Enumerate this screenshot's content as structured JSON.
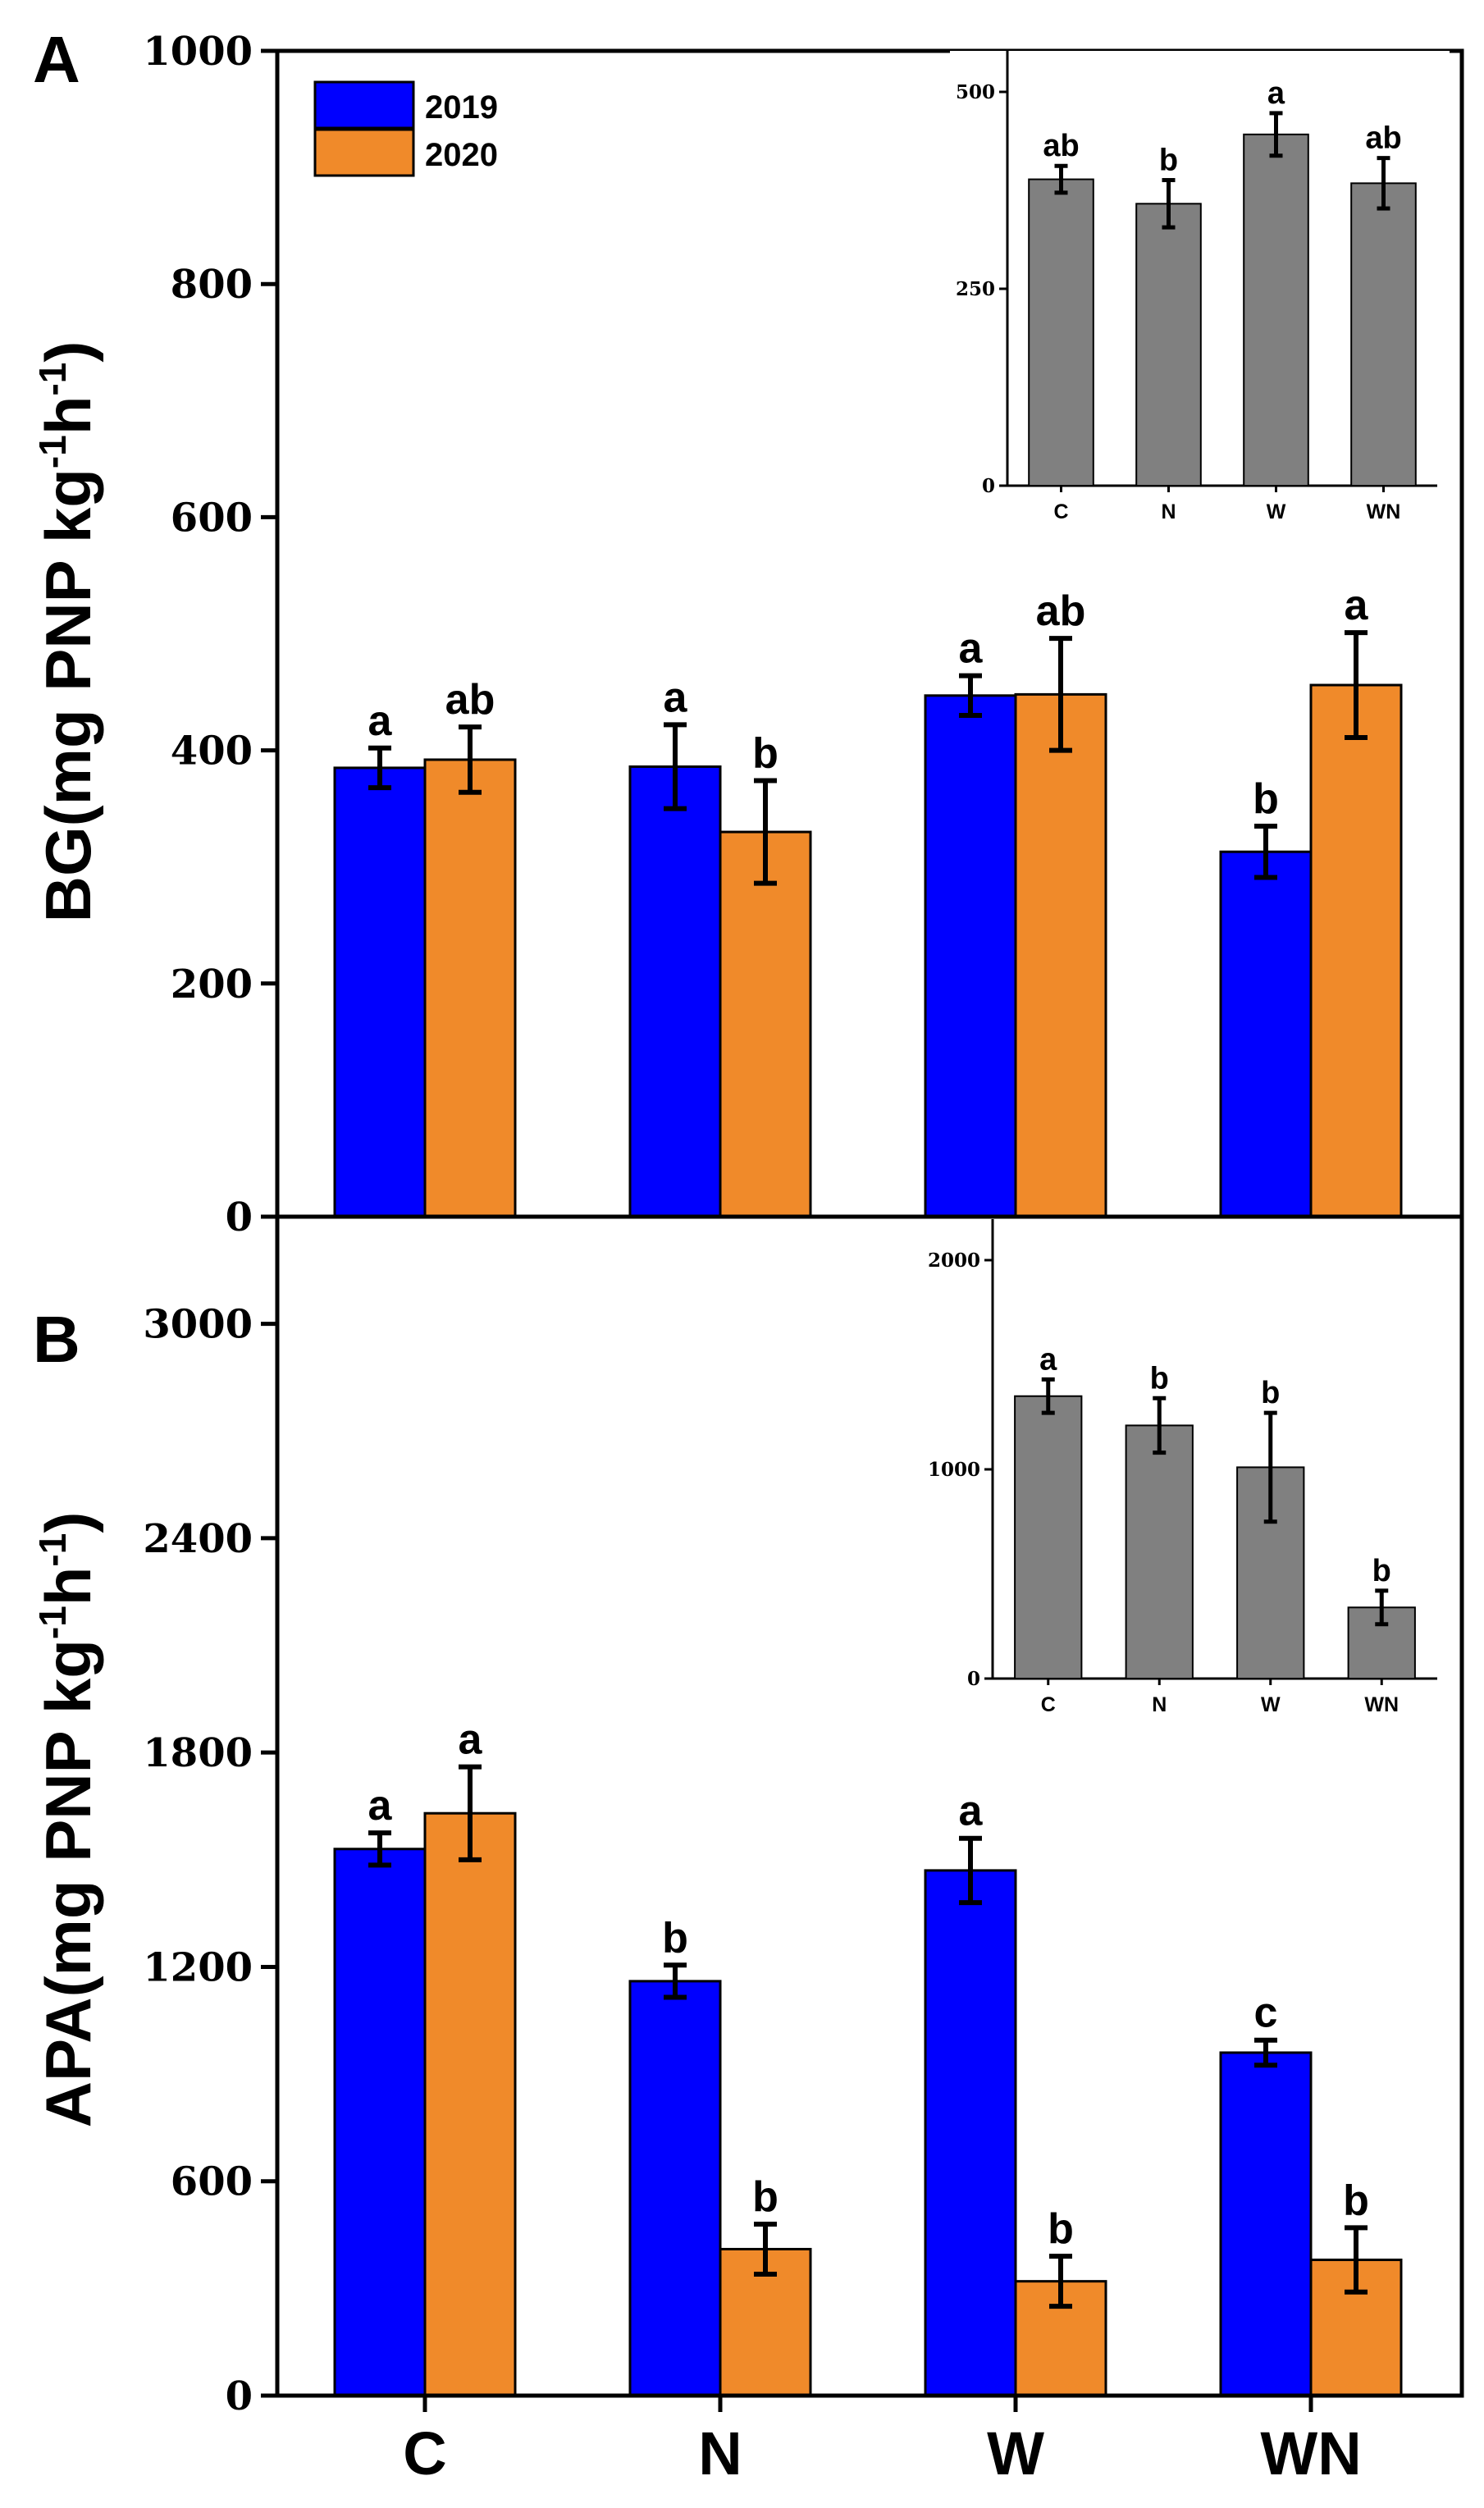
{
  "colors": {
    "series_2019": "#0000ff",
    "series_2020": "#f08a2a",
    "inset_bar": "#808080",
    "axis": "#000000"
  },
  "legend": {
    "position": "top-left",
    "items": [
      "2019",
      "2020"
    ]
  },
  "chart_data": [
    {
      "panel": "A",
      "type": "bar",
      "ylabel": "BG(mg PNP kg-1h-1)",
      "ylabel_parts": {
        "main": "BG(mg PNP kg",
        "sup1": "-1",
        "mid": "h",
        "sup2": "-1",
        "end": ")"
      },
      "categories": [
        "C",
        "N",
        "W",
        "WN"
      ],
      "ylim": [
        0,
        1000
      ],
      "yticks": [
        0,
        200,
        400,
        600,
        800,
        1000
      ],
      "grid": false,
      "series": [
        {
          "name": "2019",
          "values": [
            385,
            386,
            447,
            313
          ],
          "errors": [
            17,
            36,
            17,
            22
          ],
          "letters": [
            "a",
            "a",
            "a",
            "b"
          ]
        },
        {
          "name": "2020",
          "values": [
            392,
            330,
            448,
            456
          ],
          "errors": [
            28,
            44,
            48,
            45
          ],
          "letters": [
            "ab",
            "b",
            "ab",
            "a"
          ]
        }
      ],
      "inset": {
        "type": "bar",
        "categories": [
          "C",
          "N",
          "W",
          "WN"
        ],
        "ylim": [
          0,
          500
        ],
        "yticks": [
          0,
          250,
          500
        ],
        "values": [
          389,
          358,
          446,
          384
        ],
        "errors": [
          17,
          30,
          27,
          32
        ],
        "letters": [
          "ab",
          "b",
          "a",
          "ab"
        ]
      }
    },
    {
      "panel": "B",
      "type": "bar",
      "ylabel": "APA(mg PNP kg-1h-1)",
      "ylabel_parts": {
        "main": "APA(mg PNP kg",
        "sup1": "-1",
        "mid": "h",
        "sup2": "-1",
        "end": ")"
      },
      "categories": [
        "C",
        "N",
        "W",
        "WN"
      ],
      "ylim": [
        0,
        3300
      ],
      "yticks": [
        0,
        600,
        1200,
        1800,
        2400,
        3000
      ],
      "grid": false,
      "series": [
        {
          "name": "2019",
          "values": [
            1530,
            1160,
            1470,
            960
          ],
          "errors": [
            45,
            45,
            90,
            35
          ],
          "letters": [
            "a",
            "b",
            "a",
            "c"
          ]
        },
        {
          "name": "2020",
          "values": [
            1630,
            410,
            320,
            380
          ],
          "errors": [
            130,
            70,
            70,
            90
          ],
          "letters": [
            "a",
            "b",
            "b",
            "b"
          ]
        }
      ],
      "inset": {
        "type": "bar",
        "categories": [
          "C",
          "N",
          "W",
          "WN"
        ],
        "ylim": [
          0,
          2000
        ],
        "yticks": [
          0,
          1000,
          2000
        ],
        "values": [
          1350,
          1210,
          1010,
          340
        ],
        "errors": [
          80,
          130,
          260,
          80
        ],
        "letters": [
          "a",
          "b",
          "b",
          "b"
        ]
      }
    }
  ]
}
